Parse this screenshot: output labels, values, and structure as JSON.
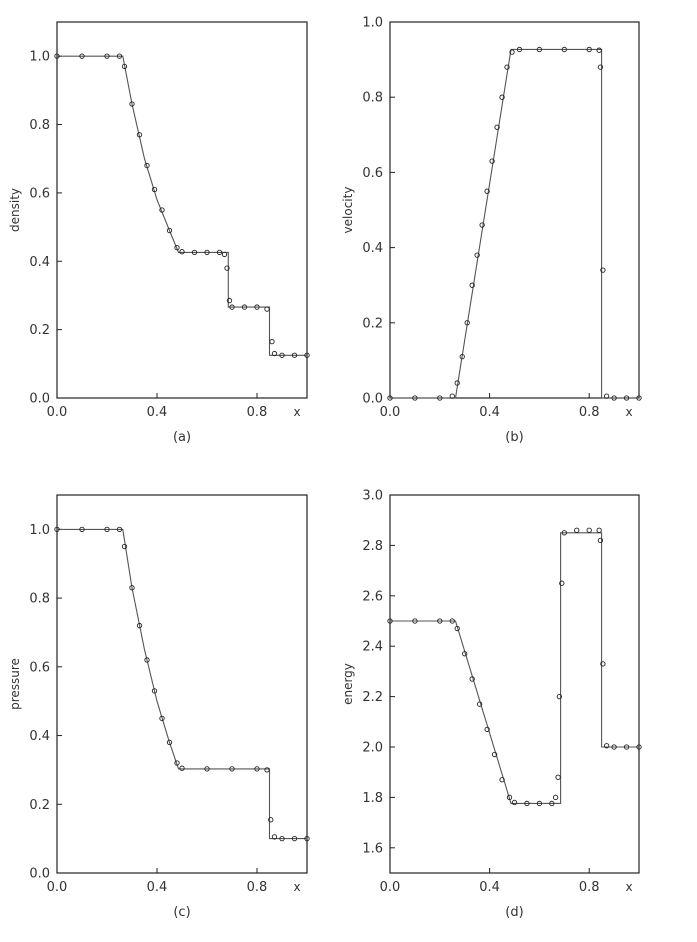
{
  "chart_data": [
    {
      "type": "line",
      "panel_label": "(a)",
      "xlabel": "x",
      "ylabel": "density",
      "xlim": [
        0.0,
        1.0
      ],
      "ylim": [
        0.0,
        1.1
      ],
      "xticks": [
        0.0,
        0.4,
        0.8
      ],
      "xtick_labels": [
        "0.0",
        "0.4",
        "0.8"
      ],
      "yticks": [
        0.0,
        0.2,
        0.4,
        0.6,
        0.8,
        1.0
      ],
      "ytick_labels": [
        "0.0",
        "0.2",
        "0.4",
        "0.6",
        "0.8",
        "1.0"
      ],
      "grid": false,
      "legend": "none",
      "series": [
        {
          "style": "line",
          "x": [
            0.0,
            0.263,
            0.3,
            0.35,
            0.4,
            0.45,
            0.486,
            0.685,
            0.685,
            0.85,
            0.85,
            1.0
          ],
          "y": [
            1.0,
            1.0,
            0.86,
            0.7,
            0.58,
            0.49,
            0.426,
            0.426,
            0.266,
            0.266,
            0.125,
            0.125
          ]
        },
        {
          "style": "markers",
          "x": [
            0.0,
            0.1,
            0.2,
            0.25,
            0.27,
            0.3,
            0.33,
            0.36,
            0.39,
            0.42,
            0.45,
            0.48,
            0.5,
            0.55,
            0.6,
            0.65,
            0.67,
            0.68,
            0.69,
            0.7,
            0.75,
            0.8,
            0.84,
            0.86,
            0.87,
            0.9,
            0.95,
            1.0
          ],
          "y": [
            1.0,
            1.0,
            1.0,
            1.0,
            0.97,
            0.86,
            0.77,
            0.68,
            0.61,
            0.55,
            0.49,
            0.44,
            0.428,
            0.426,
            0.426,
            0.426,
            0.42,
            0.38,
            0.285,
            0.266,
            0.266,
            0.266,
            0.26,
            0.165,
            0.13,
            0.125,
            0.125,
            0.125
          ]
        }
      ]
    },
    {
      "type": "line",
      "panel_label": "(b)",
      "xlabel": "x",
      "ylabel": "velocity",
      "xlim": [
        0.0,
        1.0
      ],
      "ylim": [
        0.0,
        1.0
      ],
      "xticks": [
        0.0,
        0.4,
        0.8
      ],
      "xtick_labels": [
        "0.0",
        "0.4",
        "0.8"
      ],
      "yticks": [
        0.0,
        0.2,
        0.4,
        0.6,
        0.8,
        1.0
      ],
      "ytick_labels": [
        "0.0",
        "0.2",
        "0.4",
        "0.6",
        "0.8",
        "1.0"
      ],
      "grid": false,
      "legend": "none",
      "series": [
        {
          "style": "line",
          "x": [
            0.0,
            0.263,
            0.486,
            0.85,
            0.85,
            1.0
          ],
          "y": [
            0.0,
            0.0,
            0.927,
            0.927,
            0.0,
            0.0
          ]
        },
        {
          "style": "markers",
          "x": [
            0.0,
            0.1,
            0.2,
            0.25,
            0.27,
            0.29,
            0.31,
            0.33,
            0.35,
            0.37,
            0.39,
            0.41,
            0.43,
            0.45,
            0.47,
            0.49,
            0.52,
            0.6,
            0.7,
            0.8,
            0.84,
            0.845,
            0.855,
            0.87,
            0.9,
            0.95,
            1.0
          ],
          "y": [
            0.0,
            0.0,
            0.0,
            0.005,
            0.04,
            0.11,
            0.2,
            0.3,
            0.38,
            0.46,
            0.55,
            0.63,
            0.72,
            0.8,
            0.88,
            0.92,
            0.927,
            0.927,
            0.927,
            0.927,
            0.925,
            0.88,
            0.34,
            0.005,
            0.0,
            0.0,
            0.0
          ]
        }
      ]
    },
    {
      "type": "line",
      "panel_label": "(c)",
      "xlabel": "x",
      "ylabel": "pressure",
      "xlim": [
        0.0,
        1.0
      ],
      "ylim": [
        0.0,
        1.1
      ],
      "xticks": [
        0.0,
        0.4,
        0.8
      ],
      "xtick_labels": [
        "0.0",
        "0.4",
        "0.8"
      ],
      "yticks": [
        0.0,
        0.2,
        0.4,
        0.6,
        0.8,
        1.0
      ],
      "ytick_labels": [
        "0.0",
        "0.2",
        "0.4",
        "0.6",
        "0.8",
        "1.0"
      ],
      "grid": false,
      "legend": "none",
      "series": [
        {
          "style": "line",
          "x": [
            0.0,
            0.263,
            0.3,
            0.35,
            0.4,
            0.45,
            0.486,
            0.85,
            0.85,
            1.0
          ],
          "y": [
            1.0,
            1.0,
            0.83,
            0.65,
            0.5,
            0.38,
            0.303,
            0.303,
            0.1,
            0.1
          ]
        },
        {
          "style": "markers",
          "x": [
            0.0,
            0.1,
            0.2,
            0.25,
            0.27,
            0.3,
            0.33,
            0.36,
            0.39,
            0.42,
            0.45,
            0.48,
            0.5,
            0.6,
            0.7,
            0.8,
            0.84,
            0.855,
            0.87,
            0.9,
            0.95,
            1.0
          ],
          "y": [
            1.0,
            1.0,
            1.0,
            1.0,
            0.95,
            0.83,
            0.72,
            0.62,
            0.53,
            0.45,
            0.38,
            0.32,
            0.305,
            0.303,
            0.303,
            0.303,
            0.3,
            0.155,
            0.105,
            0.1,
            0.1,
            0.1
          ]
        }
      ]
    },
    {
      "type": "line",
      "panel_label": "(d)",
      "xlabel": "x",
      "ylabel": "energy",
      "xlim": [
        0.0,
        1.0
      ],
      "ylim": [
        1.5,
        3.0
      ],
      "xticks": [
        0.0,
        0.4,
        0.8
      ],
      "xtick_labels": [
        "0.0",
        "0.4",
        "0.8"
      ],
      "yticks": [
        1.6,
        1.8,
        2.0,
        2.2,
        2.4,
        2.6,
        2.8,
        3.0
      ],
      "ytick_labels": [
        "1.6",
        "1.8",
        "2.0",
        "2.2",
        "2.4",
        "2.6",
        "2.8",
        "3.0"
      ],
      "grid": false,
      "legend": "none",
      "series": [
        {
          "style": "line",
          "x": [
            0.0,
            0.263,
            0.486,
            0.685,
            0.685,
            0.85,
            0.85,
            1.0
          ],
          "y": [
            2.5,
            2.5,
            1.776,
            1.776,
            2.85,
            2.85,
            2.0,
            2.0
          ]
        },
        {
          "style": "markers",
          "x": [
            0.0,
            0.1,
            0.2,
            0.25,
            0.27,
            0.3,
            0.33,
            0.36,
            0.39,
            0.42,
            0.45,
            0.48,
            0.5,
            0.55,
            0.6,
            0.65,
            0.665,
            0.675,
            0.68,
            0.69,
            0.7,
            0.75,
            0.8,
            0.84,
            0.845,
            0.855,
            0.87,
            0.9,
            0.95,
            1.0
          ],
          "y": [
            2.5,
            2.5,
            2.5,
            2.5,
            2.47,
            2.37,
            2.27,
            2.17,
            2.07,
            1.97,
            1.87,
            1.8,
            1.78,
            1.776,
            1.776,
            1.776,
            1.8,
            1.88,
            2.2,
            2.65,
            2.85,
            2.86,
            2.86,
            2.86,
            2.82,
            2.33,
            2.005,
            2.0,
            2.0,
            2.0
          ]
        }
      ]
    }
  ]
}
